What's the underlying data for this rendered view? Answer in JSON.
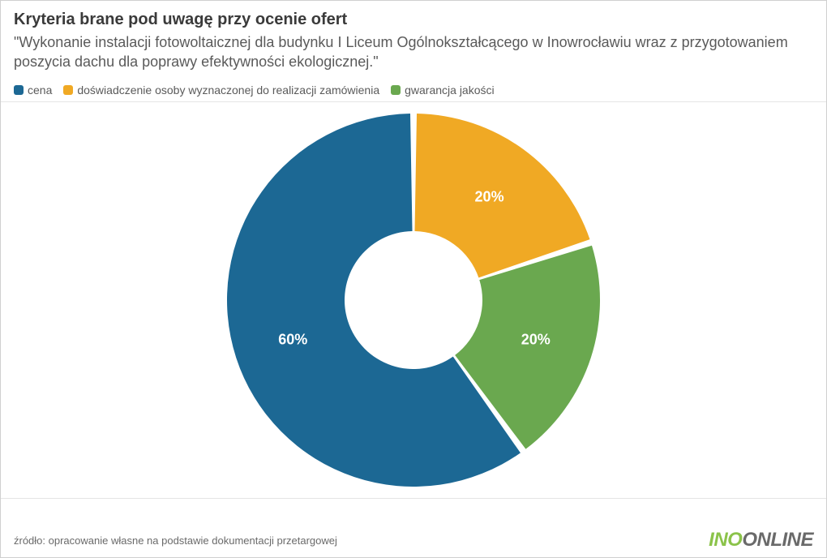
{
  "title": "Kryteria brane pod uwagę przy ocenie ofert",
  "subtitle": "\"Wykonanie instalacji fotowoltaicznej dla budynku I Liceum Ogólnokształcącego w Inowrocławiu wraz z przygotowaniem poszycia dachu dla poprawy efektywności ekologicznej.\"",
  "legend": [
    {
      "label": "cena",
      "color": "#1c6894"
    },
    {
      "label": "doświadczenie osoby wyznaczonej do realizacji zamówienia",
      "color": "#f0a924"
    },
    {
      "label": "gwarancja jakości",
      "color": "#6aa84f"
    }
  ],
  "chart": {
    "type": "donut",
    "outer_radius": 230,
    "inner_radius": 85,
    "background_color": "#ffffff",
    "start_angle_deg": 0,
    "slice_gap": 2,
    "label_fontsize": 18,
    "label_color": "#ffffff",
    "label_fontweight": "bold",
    "slices": [
      {
        "label": "20%",
        "value": 20,
        "color": "#f0a924"
      },
      {
        "label": "20%",
        "value": 20,
        "color": "#6aa84f"
      },
      {
        "label": "60%",
        "value": 60,
        "color": "#1c6894"
      }
    ]
  },
  "source": "źródło: opracowanie własne na podstawie dokumentacji przetargowej",
  "logo": {
    "part1": "INO",
    "part2": "ONLINE",
    "color1": "#8bc34a",
    "color2": "#6a6a6a"
  }
}
